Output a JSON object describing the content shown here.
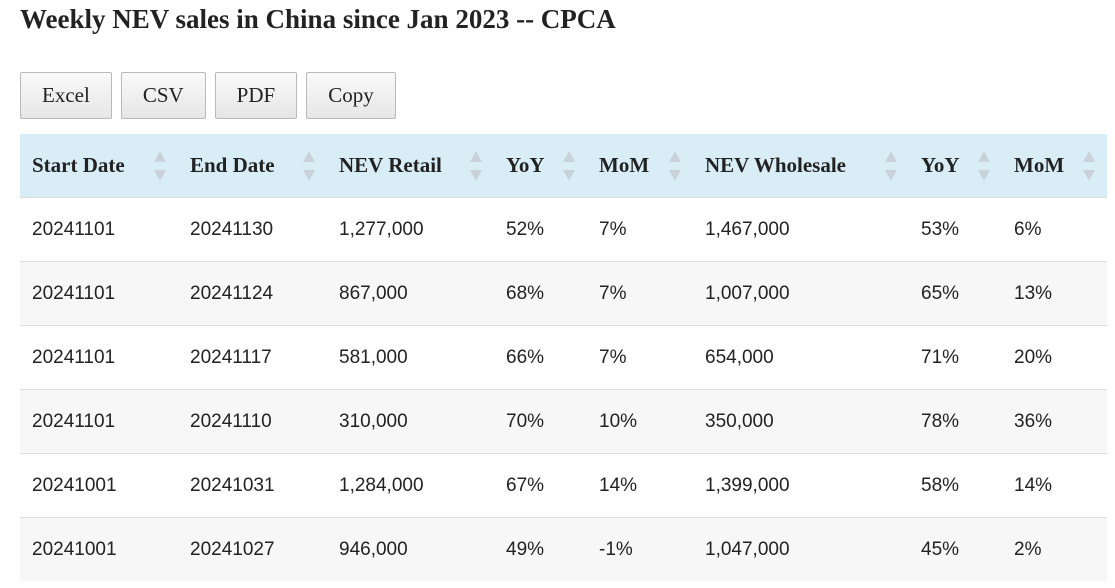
{
  "header": {
    "title": "Weekly NEV sales in China since Jan 2023 -- CPCA"
  },
  "buttons": [
    "Excel",
    "CSV",
    "PDF",
    "Copy"
  ],
  "table": {
    "columns": [
      "Start Date",
      "End Date",
      "NEV Retail",
      "YoY",
      "MoM",
      "NEV Wholesale",
      "YoY",
      "MoM"
    ],
    "rows": [
      [
        "20241101",
        "20241130",
        "1,277,000",
        "52%",
        "7%",
        "1,467,000",
        "53%",
        "6%"
      ],
      [
        "20241101",
        "20241124",
        "867,000",
        "68%",
        "7%",
        "1,007,000",
        "65%",
        "13%"
      ],
      [
        "20241101",
        "20241117",
        "581,000",
        "66%",
        "7%",
        "654,000",
        "71%",
        "20%"
      ],
      [
        "20241101",
        "20241110",
        "310,000",
        "70%",
        "10%",
        "350,000",
        "78%",
        "36%"
      ],
      [
        "20241001",
        "20241031",
        "1,284,000",
        "67%",
        "14%",
        "1,399,000",
        "58%",
        "14%"
      ],
      [
        "20241001",
        "20241027",
        "946,000",
        "49%",
        "-1%",
        "1,047,000",
        "45%",
        "2%"
      ]
    ]
  }
}
